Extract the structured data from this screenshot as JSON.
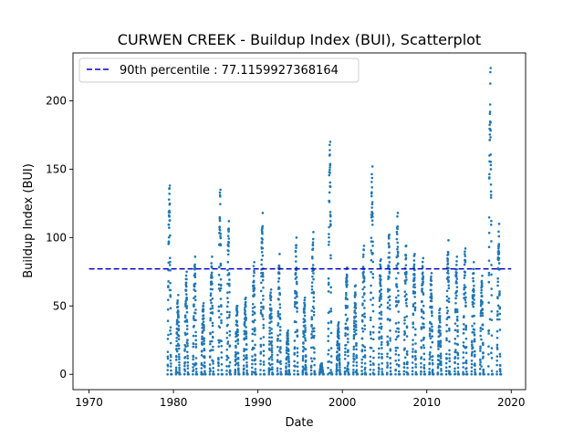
{
  "chart_data": {
    "type": "scatter",
    "title": "CURWEN CREEK - Buildup Index (BUI), Scatterplot",
    "xlabel": "Date",
    "ylabel": "Buildup Index (BUI)",
    "xlim": [
      1968.1,
      2021.7
    ],
    "ylim": [
      -11.2,
      235
    ],
    "xticks": [
      1970,
      1980,
      1990,
      2000,
      2010,
      2020
    ],
    "xtick_labels": [
      "1970",
      "1980",
      "1990",
      "2000",
      "2010",
      "2020"
    ],
    "yticks": [
      0,
      50,
      100,
      150,
      200
    ],
    "ytick_labels": [
      "0",
      "50",
      "100",
      "150",
      "200"
    ],
    "grid": false,
    "legend_position": "top-left",
    "series_color": "#1f77b4",
    "reference_color": "#0000cd",
    "reference_line": {
      "label": "90th percentile : 77.1159927368164",
      "value": 77.1159927368164,
      "x": [
        1970,
        2020
      ]
    },
    "seasons": [
      {
        "year": 1979,
        "peak": 138
      },
      {
        "year": 1980,
        "peak": 58
      },
      {
        "year": 1981,
        "peak": 75
      },
      {
        "year": 1982,
        "peak": 86
      },
      {
        "year": 1983,
        "peak": 52
      },
      {
        "year": 1984,
        "peak": 86
      },
      {
        "year": 1985,
        "peak": 135
      },
      {
        "year": 1986,
        "peak": 112
      },
      {
        "year": 1987,
        "peak": 50
      },
      {
        "year": 1988,
        "peak": 56
      },
      {
        "year": 1989,
        "peak": 82
      },
      {
        "year": 1990,
        "peak": 118
      },
      {
        "year": 1991,
        "peak": 62
      },
      {
        "year": 1992,
        "peak": 88
      },
      {
        "year": 1993,
        "peak": 32
      },
      {
        "year": 1994,
        "peak": 100
      },
      {
        "year": 1995,
        "peak": 56
      },
      {
        "year": 1996,
        "peak": 104
      },
      {
        "year": 1997,
        "peak": 8
      },
      {
        "year": 1998,
        "peak": 170
      },
      {
        "year": 1999,
        "peak": 38
      },
      {
        "year": 2000,
        "peak": 78
      },
      {
        "year": 2001,
        "peak": 65
      },
      {
        "year": 2002,
        "peak": 94
      },
      {
        "year": 2003,
        "peak": 152
      },
      {
        "year": 2004,
        "peak": 84
      },
      {
        "year": 2005,
        "peak": 102
      },
      {
        "year": 2006,
        "peak": 118
      },
      {
        "year": 2007,
        "peak": 94
      },
      {
        "year": 2008,
        "peak": 88
      },
      {
        "year": 2009,
        "peak": 85
      },
      {
        "year": 2010,
        "peak": 74
      },
      {
        "year": 2011,
        "peak": 48
      },
      {
        "year": 2012,
        "peak": 98
      },
      {
        "year": 2013,
        "peak": 86
      },
      {
        "year": 2014,
        "peak": 92
      },
      {
        "year": 2015,
        "peak": 82
      },
      {
        "year": 2016,
        "peak": 72
      },
      {
        "year": 2017,
        "peak": 224
      },
      {
        "year": 2018,
        "peak": 110
      }
    ]
  }
}
